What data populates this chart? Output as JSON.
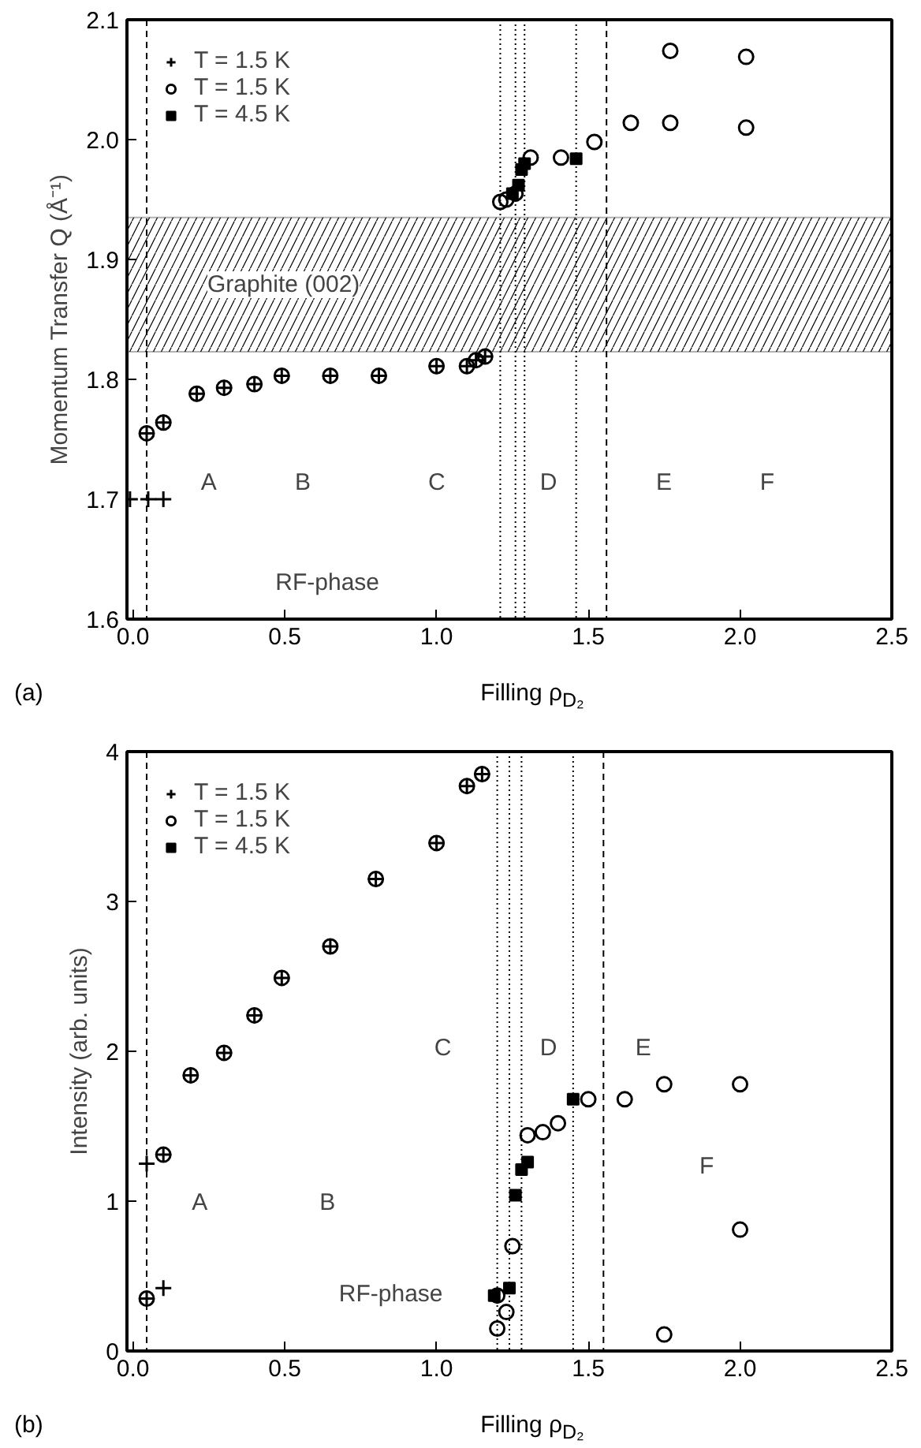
{
  "chart_data": [
    {
      "type": "scatter",
      "xlabel": "Filling ρ$_{D₂}$",
      "ylabel": "Momentum Transfer Q (Å⁻¹)",
      "xlim": [
        -0.02,
        2.5
      ],
      "ylim": [
        1.6,
        2.1
      ],
      "xticks": [
        {
          "value": 0,
          "label": "0.0"
        },
        {
          "value": 0.5,
          "label": "0.5"
        },
        {
          "value": 1,
          "label": "1.0"
        },
        {
          "value": 1.5,
          "label": "1.5"
        },
        {
          "value": 2,
          "label": "2.0"
        },
        {
          "value": 2.5,
          "label": "2.5"
        }
      ],
      "yticks": [
        1.6,
        1.7,
        1.8,
        1.9,
        {
          "value": 2,
          "label": "2.0"
        },
        2.1
      ],
      "grid": false,
      "legend": "top left",
      "series": [
        {
          "name": "T = 1.5 K",
          "color": "#000000",
          "marker": "cross",
          "x": [
            0.045,
            0.1,
            0.21,
            0.3,
            0.4,
            0.49,
            0.65,
            0.81,
            1.0,
            1.1,
            1.13,
            1.16,
            -0.01,
            0.05,
            0.1
          ],
          "values": [
            1.755,
            1.764,
            1.788,
            1.793,
            1.796,
            1.803,
            1.803,
            1.803,
            1.811,
            1.811,
            1.816,
            1.819,
            1.7,
            1.7,
            1.7
          ]
        },
        {
          "name": "T = 1.5 K",
          "color": "#000000",
          "marker": "circle",
          "x": [
            0.045,
            0.1,
            0.21,
            0.3,
            0.4,
            0.49,
            0.65,
            0.81,
            1.0,
            1.1,
            1.13,
            1.16,
            1.21,
            1.23,
            1.26,
            1.31,
            1.41,
            1.52,
            1.64,
            1.77,
            1.77,
            2.02,
            2.02
          ],
          "values": [
            1.755,
            1.764,
            1.788,
            1.793,
            1.796,
            1.803,
            1.803,
            1.803,
            1.811,
            1.811,
            1.816,
            1.819,
            1.948,
            1.95,
            1.955,
            1.985,
            1.985,
            1.998,
            2.014,
            2.014,
            2.074,
            2.069,
            2.01
          ]
        },
        {
          "name": "T = 4.5 K",
          "color": "#000000",
          "marker": "square",
          "x": [
            1.25,
            1.27,
            1.28,
            1.29,
            1.46
          ],
          "values": [
            1.955,
            1.962,
            1.975,
            1.98,
            1.984
          ]
        }
      ],
      "bands": [
        {
          "axis": "y",
          "from": 1.823,
          "to": 1.935,
          "label": "Graphite (002)"
        }
      ],
      "ref_lines": [
        {
          "axis": "x",
          "value": 0.045,
          "line_style": "dashed"
        },
        {
          "axis": "x",
          "value": 1.21,
          "line_style": "dotted"
        },
        {
          "axis": "x",
          "value": 1.26,
          "line_style": "dotted"
        },
        {
          "axis": "x",
          "value": 1.29,
          "line_style": "dotted"
        },
        {
          "axis": "x",
          "value": 1.46,
          "line_style": "dotted"
        },
        {
          "axis": "x",
          "value": 1.56,
          "line_style": "dashed"
        }
      ],
      "annotations": [
        "A",
        "B",
        "C",
        "D",
        "E",
        "F",
        "RF-phase",
        "(a)"
      ]
    },
    {
      "type": "scatter",
      "xlabel": "Filling ρ$_{D₂}$",
      "ylabel": "Intensity (arb. units)",
      "xlim": [
        -0.02,
        2.5
      ],
      "ylim": [
        0,
        4
      ],
      "xticks": [
        {
          "value": 0,
          "label": "0.0"
        },
        {
          "value": 0.5,
          "label": "0.5"
        },
        {
          "value": 1,
          "label": "1.0"
        },
        {
          "value": 1.5,
          "label": "1.5"
        },
        {
          "value": 2,
          "label": "2.0"
        },
        {
          "value": 2.5,
          "label": "2.5"
        }
      ],
      "yticks": [
        0,
        1,
        2,
        3,
        4
      ],
      "grid": false,
      "legend": "top left",
      "series": [
        {
          "name": "T = 1.5 K",
          "color": "#000000",
          "marker": "cross",
          "x": [
            0.045,
            0.1,
            0.19,
            0.3,
            0.4,
            0.49,
            0.65,
            0.8,
            1.0,
            1.1,
            1.15,
            0.045,
            0.1
          ],
          "values": [
            0.35,
            1.31,
            1.84,
            1.99,
            2.24,
            2.49,
            2.7,
            3.15,
            3.39,
            3.77,
            3.85,
            1.25,
            0.42
          ]
        },
        {
          "name": "T = 1.5 K",
          "color": "#000000",
          "marker": "circle",
          "x": [
            0.045,
            0.1,
            0.19,
            0.3,
            0.4,
            0.49,
            0.65,
            0.8,
            1.0,
            1.1,
            1.15,
            1.2,
            1.23,
            1.2,
            1.25,
            1.3,
            1.35,
            1.4,
            1.5,
            1.62,
            1.75,
            2.0,
            2.0,
            1.75
          ],
          "values": [
            0.35,
            1.31,
            1.84,
            1.99,
            2.24,
            2.49,
            2.7,
            3.15,
            3.39,
            3.77,
            3.85,
            0.15,
            0.26,
            0.37,
            0.7,
            1.44,
            1.46,
            1.52,
            1.68,
            1.68,
            1.78,
            1.78,
            0.81,
            0.11
          ]
        },
        {
          "name": "T = 4.5 K",
          "color": "#000000",
          "marker": "square",
          "x": [
            1.19,
            1.24,
            1.26,
            1.28,
            1.3,
            1.45
          ],
          "values": [
            0.37,
            0.42,
            1.04,
            1.21,
            1.26,
            1.68
          ]
        }
      ],
      "ref_lines": [
        {
          "axis": "x",
          "value": 0.045,
          "line_style": "dashed"
        },
        {
          "axis": "x",
          "value": 1.2,
          "line_style": "dotted"
        },
        {
          "axis": "x",
          "value": 1.24,
          "line_style": "dotted"
        },
        {
          "axis": "x",
          "value": 1.28,
          "line_style": "dotted"
        },
        {
          "axis": "x",
          "value": 1.45,
          "line_style": "dotted"
        },
        {
          "axis": "x",
          "value": 1.55,
          "line_style": "dashed"
        }
      ],
      "annotations": [
        "A",
        "B",
        "C",
        "D",
        "E",
        "F",
        "RF-phase",
        "(b)"
      ]
    }
  ]
}
